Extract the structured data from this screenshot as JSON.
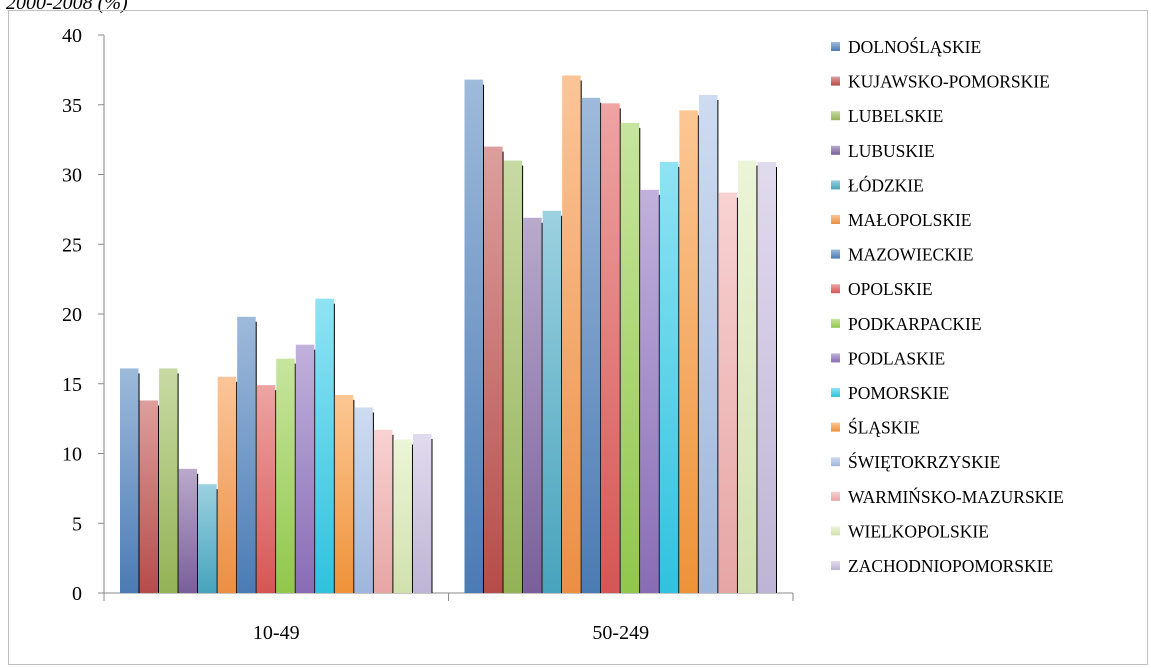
{
  "title_fragment": "2000-2008 (%)",
  "chart_data": {
    "type": "bar",
    "categories": [
      "10-49",
      "50-249"
    ],
    "ylim": [
      0,
      40
    ],
    "yticks": [
      0,
      5,
      10,
      15,
      20,
      25,
      30,
      35,
      40
    ],
    "grid": false,
    "legend_position": "right",
    "series": [
      {
        "name": "DOLNOŚLĄSKIE",
        "color": "#4f81bd",
        "values": [
          16.1,
          36.8
        ]
      },
      {
        "name": "KUJAWSKO-POMORSKIE",
        "color": "#c0504d",
        "values": [
          13.8,
          32.0
        ]
      },
      {
        "name": "LUBELSKIE",
        "color": "#9bbb59",
        "values": [
          16.1,
          31.0
        ]
      },
      {
        "name": "LUBUSKIE",
        "color": "#8064a2",
        "values": [
          8.9,
          26.9
        ]
      },
      {
        "name": "ŁÓDZKIE",
        "color": "#4bacc6",
        "values": [
          7.8,
          27.4
        ]
      },
      {
        "name": "MAŁOPOLSKIE",
        "color": "#f79646",
        "values": [
          15.5,
          37.1
        ]
      },
      {
        "name": "MAZOWIECKIE",
        "color": "#4f81bd",
        "values": [
          19.8,
          35.5
        ]
      },
      {
        "name": "OPOLSKIE",
        "color": "#e05a58",
        "values": [
          14.9,
          35.1
        ]
      },
      {
        "name": "PODKARPACKIE",
        "color": "#9ad050",
        "values": [
          16.8,
          33.7
        ]
      },
      {
        "name": "PODLASKIE",
        "color": "#8f72bf",
        "values": [
          17.8,
          28.9
        ]
      },
      {
        "name": "POMORSKIE",
        "color": "#33ccea",
        "values": [
          21.1,
          30.9
        ]
      },
      {
        "name": "ŚLĄSKIE",
        "color": "#fa9a3c",
        "values": [
          14.2,
          34.6
        ]
      },
      {
        "name": "ŚWIĘTOKRZYSKIE",
        "color": "#a6c0e6",
        "values": [
          13.3,
          35.7
        ]
      },
      {
        "name": "WARMIŃSKO-MAZURSKIE",
        "color": "#f2aeae",
        "values": [
          11.7,
          28.7
        ]
      },
      {
        "name": "WIELKOPOLSKIE",
        "color": "#dcedb6",
        "values": [
          11.0,
          31.0
        ]
      },
      {
        "name": "ZACHODNIOPOMORSKIE",
        "color": "#c8bde0",
        "values": [
          11.4,
          30.9
        ]
      }
    ]
  }
}
